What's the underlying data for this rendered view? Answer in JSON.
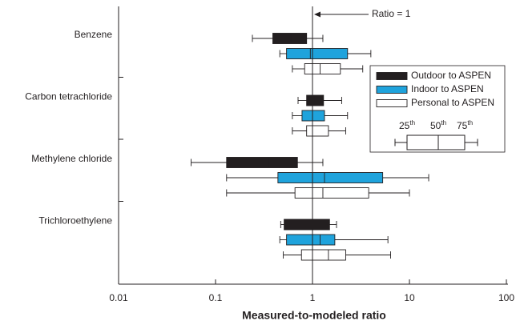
{
  "chart_data": {
    "type": "boxplot",
    "x_label": "Measured-to-modeled ratio",
    "xscale": "log",
    "xlim": [
      0.01,
      100
    ],
    "xticks": [
      0.01,
      0.1,
      1,
      10,
      100
    ],
    "reference_line": 1,
    "annotation": "Ratio = 1",
    "categories": [
      "Benzene",
      "Carbon tetrachloride",
      "Methylene chloride",
      "Trichloroethylene"
    ],
    "legend": "upper right",
    "key_labels": [
      {
        "number": "25",
        "suffix": "th"
      },
      {
        "number": "50",
        "suffix": "th"
      },
      {
        "number": "75",
        "suffix": "th"
      }
    ],
    "series": [
      {
        "name": "Outdoor to ASPEN",
        "color": "#231f20",
        "whisker_low": [
          0.24,
          0.71,
          0.056,
          0.47
        ],
        "q1": [
          0.39,
          0.87,
          0.13,
          0.51
        ],
        "median": [
          0.6,
          1.05,
          0.35,
          0.9
        ],
        "q3": [
          0.87,
          1.3,
          0.7,
          1.5
        ],
        "whisker_high": [
          1.28,
          2.0,
          1.28,
          1.77
        ]
      },
      {
        "name": "Indoor to ASPEN",
        "color": "#1fa3dc",
        "whisker_low": [
          0.46,
          0.62,
          0.13,
          0.46
        ],
        "q1": [
          0.54,
          0.78,
          0.44,
          0.54
        ],
        "median": [
          0.95,
          1.0,
          1.33,
          1.2
        ],
        "q3": [
          2.3,
          1.33,
          5.3,
          1.7
        ],
        "whisker_high": [
          4.0,
          2.3,
          15.8,
          6.0
        ]
      },
      {
        "name": "Personal to ASPEN",
        "color": "#ffffff",
        "whisker_low": [
          0.62,
          0.62,
          0.13,
          0.5
        ],
        "q1": [
          0.83,
          0.87,
          0.66,
          0.77
        ],
        "median": [
          1.2,
          1.0,
          1.28,
          1.46
        ],
        "q3": [
          1.94,
          1.46,
          3.8,
          2.2
        ],
        "whisker_high": [
          3.3,
          2.2,
          10,
          6.4
        ]
      }
    ]
  }
}
